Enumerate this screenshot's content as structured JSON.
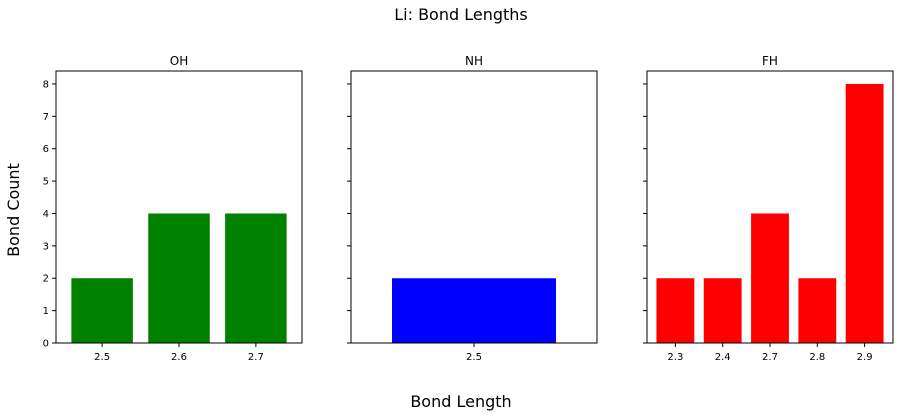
{
  "figure": {
    "title": "Li: Bond Lengths",
    "xlabel": "Bond Length",
    "ylabel": "Bond Count"
  },
  "chart_data": [
    {
      "type": "bar",
      "title": "OH",
      "categories": [
        "2.5",
        "2.6",
        "2.7"
      ],
      "values": [
        2,
        4,
        4
      ],
      "color": "#008000",
      "ylim": [
        0,
        8.4
      ],
      "yticks": [
        0,
        1,
        2,
        3,
        4,
        5,
        6,
        7,
        8
      ],
      "grid": false
    },
    {
      "type": "bar",
      "title": "NH",
      "categories": [
        "2.5"
      ],
      "values": [
        2
      ],
      "color": "#0000ff",
      "ylim": [
        0,
        8.4
      ],
      "yticks": [
        0,
        1,
        2,
        3,
        4,
        5,
        6,
        7,
        8
      ],
      "grid": false
    },
    {
      "type": "bar",
      "title": "FH",
      "categories": [
        "2.3",
        "2.4",
        "2.7",
        "2.8",
        "2.9"
      ],
      "values": [
        2,
        2,
        4,
        2,
        8
      ],
      "color": "#ff0000",
      "ylim": [
        0,
        8.4
      ],
      "yticks": [
        0,
        1,
        2,
        3,
        4,
        5,
        6,
        7,
        8
      ],
      "grid": false
    }
  ]
}
